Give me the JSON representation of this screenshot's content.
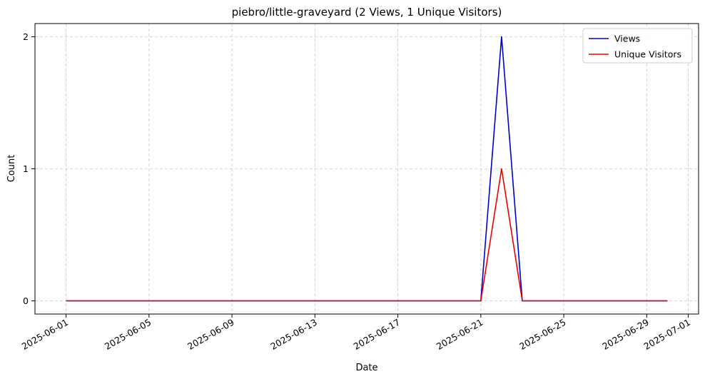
{
  "chart_data": {
    "type": "line",
    "title": "piebro/little-graveyard (2 Views, 1 Unique Visitors)",
    "xlabel": "Date",
    "ylabel": "Count",
    "x": [
      "2025-06-01",
      "2025-06-02",
      "2025-06-03",
      "2025-06-04",
      "2025-06-05",
      "2025-06-06",
      "2025-06-07",
      "2025-06-08",
      "2025-06-09",
      "2025-06-10",
      "2025-06-11",
      "2025-06-12",
      "2025-06-13",
      "2025-06-14",
      "2025-06-15",
      "2025-06-16",
      "2025-06-17",
      "2025-06-18",
      "2025-06-19",
      "2025-06-20",
      "2025-06-21",
      "2025-06-22",
      "2025-06-23",
      "2025-06-24",
      "2025-06-25",
      "2025-06-26",
      "2025-06-27",
      "2025-06-28",
      "2025-06-29",
      "2025-06-30"
    ],
    "series": [
      {
        "name": "Views",
        "color": "#0000cc",
        "values": [
          0,
          0,
          0,
          0,
          0,
          0,
          0,
          0,
          0,
          0,
          0,
          0,
          0,
          0,
          0,
          0,
          0,
          0,
          0,
          0,
          0,
          2,
          0,
          0,
          0,
          0,
          0,
          0,
          0,
          0
        ]
      },
      {
        "name": "Unique Visitors",
        "color": "#ee0000",
        "values": [
          0,
          0,
          0,
          0,
          0,
          0,
          0,
          0,
          0,
          0,
          0,
          0,
          0,
          0,
          0,
          0,
          0,
          0,
          0,
          0,
          0,
          1,
          0,
          0,
          0,
          0,
          0,
          0,
          0,
          0
        ]
      }
    ],
    "xticks": [
      "2025-06-01",
      "2025-06-05",
      "2025-06-09",
      "2025-06-13",
      "2025-06-17",
      "2025-06-21",
      "2025-06-25",
      "2025-06-29",
      "2025-07-01"
    ],
    "yticks": [
      0,
      1,
      2
    ],
    "xlim": [
      "2025-05-30 12:00",
      "2025-07-01 12:00"
    ],
    "ylim": [
      -0.1,
      2.1
    ],
    "grid": true,
    "legend": "top-right"
  }
}
